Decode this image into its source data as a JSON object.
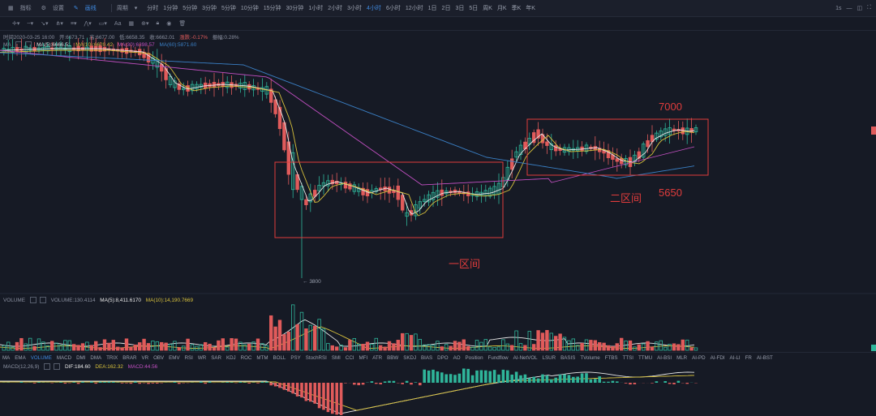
{
  "toolbar": {
    "indicators_label": "指标",
    "settings_label": "设置",
    "drawing_label": "画线",
    "period_label": "周期",
    "intervals": [
      "分时",
      "1分钟",
      "5分钟",
      "3分钟",
      "5分钟",
      "10分钟",
      "15分钟",
      "30分钟",
      "1小时",
      "2小时",
      "3小时",
      "4小时",
      "6小时",
      "12小时",
      "1日",
      "2日",
      "3日",
      "5日",
      "周K",
      "月K",
      "季K",
      "年K"
    ],
    "active_interval": "4小时",
    "speed_label": "1s"
  },
  "info": {
    "time": "时间2020-03-25 16:00",
    "open": "开:6673.71",
    "high": "高:6677.00",
    "low": "低:6658.35",
    "close": "收:6662.01",
    "change": "涨跌:-0.17%",
    "amplitude": "振幅:0.28%",
    "ma_title": "MA",
    "ma5": "MA(5):6666.51",
    "ma10": "MA(10):6620.42",
    "ma30": "MA(30):6398.57",
    "ma60": "MA(60):5871.60"
  },
  "volume_info": {
    "title": "VOLUME",
    "value": "VOLUME:130.4114",
    "ma5": "MA(5):8,411.6170",
    "ma10": "MA(10):14,190.7669"
  },
  "macd_info": {
    "title": "MACD(12,26,9)",
    "dif": "DIF:184.60",
    "dea": "DEA:162.32",
    "macd": "MACD:44.56"
  },
  "indicator_tabs": [
    "MA",
    "EMA",
    "VOLUME",
    "MACD",
    "DMI",
    "DMA",
    "TRIX",
    "BRAR",
    "VR",
    "OBV",
    "EMV",
    "RSI",
    "WR",
    "SAR",
    "KDJ",
    "ROC",
    "MTM",
    "BOLL",
    "PSY",
    "StochRSI",
    "SMI",
    "CCI",
    "MFI",
    "ATR",
    "BBW",
    "SKDJ",
    "BIAS",
    "DPO",
    "AO",
    "Position",
    "Fundflow",
    "AI-NetVOL",
    "LSUR",
    "BASIS",
    "TVolume",
    "FTBS",
    "TTSI",
    "TTMU",
    "AI-BSI",
    "MLR",
    "AI-PD",
    "AI-FDI",
    "AI-LI",
    "FR",
    "AI-BST"
  ],
  "active_tabs": [
    "VOLUME"
  ],
  "annotations": {
    "low_price": "3800",
    "zone1": "一区间",
    "zone2": "二区间",
    "level_7000": "7000",
    "level_5650": "5650"
  },
  "colors": {
    "up": "#2fb59a",
    "down": "#e05b5b",
    "ma5": "#e8e8e8",
    "ma10": "#d8c13c",
    "ma30": "#c04fc0",
    "ma60": "#3a7fc4",
    "annotation": "#e03c3c"
  }
}
